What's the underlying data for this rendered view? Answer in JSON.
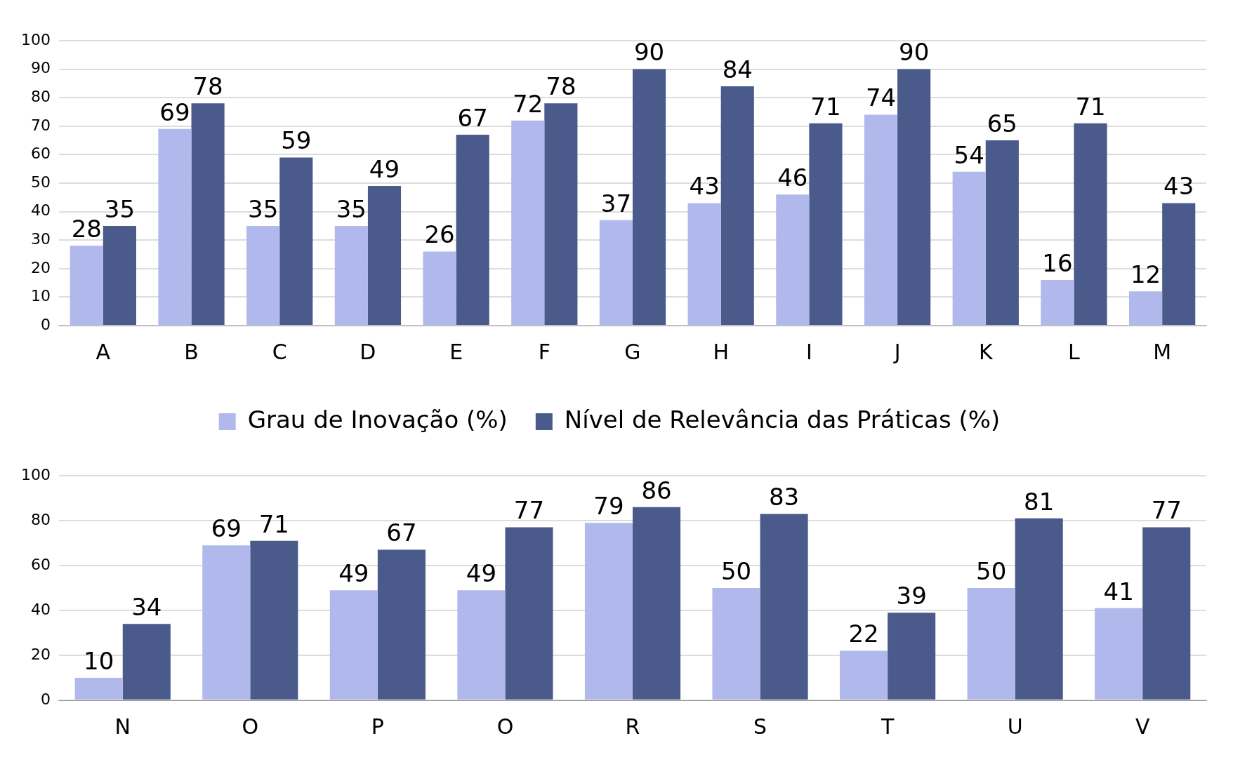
{
  "chart_data": [
    {
      "type": "bar",
      "categories": [
        "A",
        "B",
        "C",
        "D",
        "E",
        "F",
        "G",
        "H",
        "I",
        "J",
        "K",
        "L",
        "M"
      ],
      "series": [
        {
          "name": "Grau de Inovação (%)",
          "color": "#b0b8ec",
          "values": [
            28,
            69,
            35,
            35,
            26,
            72,
            37,
            43,
            46,
            74,
            54,
            16,
            12
          ]
        },
        {
          "name": "Nível de Relevância das Práticas (%)",
          "color": "#4a5a8a",
          "values": [
            35,
            78,
            59,
            49,
            67,
            78,
            90,
            84,
            71,
            90,
            65,
            71,
            43
          ]
        }
      ],
      "ylim": [
        0,
        100
      ],
      "yticks": [
        0,
        10,
        20,
        30,
        40,
        50,
        60,
        70,
        80,
        90,
        100
      ],
      "grid": "y",
      "legend": "bottom",
      "data_labels": true
    },
    {
      "type": "bar",
      "categories": [
        "N",
        "O",
        "P",
        "O",
        "R",
        "S",
        "T",
        "U",
        "V"
      ],
      "series": [
        {
          "color": "#b0b8ec",
          "values": [
            10,
            69,
            49,
            49,
            79,
            50,
            22,
            50,
            41
          ]
        },
        {
          "color": "#4a5a8a",
          "values": [
            34,
            71,
            67,
            77,
            86,
            83,
            39,
            81,
            77
          ]
        }
      ],
      "ylim": [
        0,
        100
      ],
      "yticks": [
        0,
        20,
        40,
        60,
        80,
        100
      ],
      "grid": "y",
      "data_labels": true
    }
  ]
}
